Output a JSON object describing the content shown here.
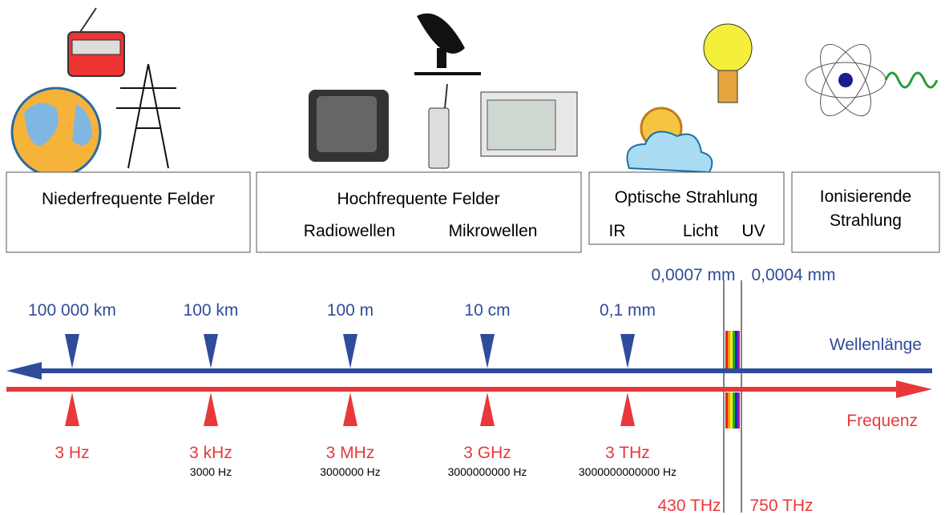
{
  "boxes": [
    {
      "title": "Niederfrequente Felder"
    },
    {
      "title": "Hochfrequente Felder",
      "sub": [
        "Radiowellen",
        "Mikrowellen"
      ]
    },
    {
      "title": "Optische Strahlung",
      "sub": [
        "IR",
        "Licht",
        "UV"
      ]
    },
    {
      "lines": [
        "Ionisierende",
        "Strahlung"
      ]
    }
  ],
  "wavelength": {
    "label": "Wellenlänge",
    "markers": [
      "100 000 km",
      "100 km",
      "100 m",
      "10 cm",
      "0,1 mm"
    ],
    "optical": [
      "0,0007 mm",
      "0,0004 mm"
    ]
  },
  "frequency": {
    "label": "Frequenz",
    "markers": [
      {
        "label": "3 Hz"
      },
      {
        "label": "3 kHz",
        "detail": "3000 Hz"
      },
      {
        "label": "3 MHz",
        "detail": "3000000 Hz"
      },
      {
        "label": "3 GHz",
        "detail": "3000000000 Hz"
      },
      {
        "label": "3 THz",
        "detail": "3000000000000 Hz"
      }
    ],
    "optical": [
      "430 THz",
      "750 THz"
    ]
  }
}
